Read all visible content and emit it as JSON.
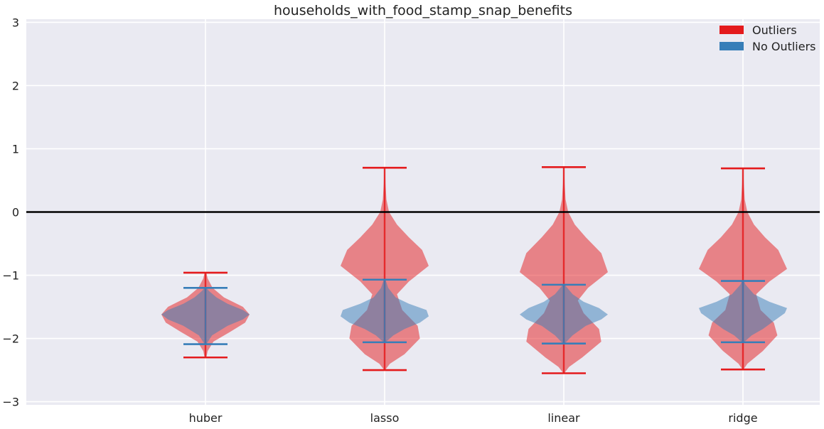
{
  "chart_data": {
    "type": "violin",
    "title": "households_with_food_stamp_snap_benefits",
    "xlabel": "",
    "ylabel": "",
    "categories": [
      "huber",
      "lasso",
      "linear",
      "ridge"
    ],
    "ylim": [
      -3.05,
      3.05
    ],
    "yticks": [
      -3,
      -2,
      -1,
      0,
      1,
      2,
      3
    ],
    "ytick_labels": [
      "−3",
      "−2",
      "−1",
      "0",
      "1",
      "2",
      "3"
    ],
    "reference_line_y": 0,
    "grid": true,
    "legend_position": "top-right",
    "series": [
      {
        "name": "Outliers",
        "color": "#e41a1c",
        "violins": [
          {
            "category": "huber",
            "min": -2.3,
            "max": -0.96,
            "profile": [
              [
                -2.3,
                0.02
              ],
              [
                -2.2,
                0.05
              ],
              [
                -2.05,
                0.18
              ],
              [
                -1.9,
                0.55
              ],
              [
                -1.75,
                0.9
              ],
              [
                -1.62,
                1.0
              ],
              [
                -1.5,
                0.85
              ],
              [
                -1.35,
                0.42
              ],
              [
                -1.2,
                0.16
              ],
              [
                -1.05,
                0.05
              ],
              [
                -0.96,
                0.02
              ]
            ]
          },
          {
            "category": "lasso",
            "min": -2.5,
            "max": 0.7,
            "profile": [
              [
                -2.5,
                0.01
              ],
              [
                -2.4,
                0.12
              ],
              [
                -2.25,
                0.45
              ],
              [
                -2.0,
                0.8
              ],
              [
                -1.8,
                0.75
              ],
              [
                -1.55,
                0.4
              ],
              [
                -1.3,
                0.28
              ],
              [
                -1.1,
                0.55
              ],
              [
                -0.85,
                1.0
              ],
              [
                -0.6,
                0.85
              ],
              [
                -0.4,
                0.55
              ],
              [
                -0.2,
                0.28
              ],
              [
                0.0,
                0.1
              ],
              [
                0.2,
                0.04
              ],
              [
                0.45,
                0.02
              ],
              [
                0.7,
                0.01
              ]
            ]
          },
          {
            "category": "linear",
            "min": -2.55,
            "max": 0.71,
            "profile": [
              [
                -2.55,
                0.01
              ],
              [
                -2.45,
                0.12
              ],
              [
                -2.3,
                0.42
              ],
              [
                -2.05,
                0.85
              ],
              [
                -1.85,
                0.8
              ],
              [
                -1.6,
                0.45
              ],
              [
                -1.4,
                0.32
              ],
              [
                -1.2,
                0.55
              ],
              [
                -0.95,
                1.0
              ],
              [
                -0.65,
                0.85
              ],
              [
                -0.4,
                0.5
              ],
              [
                -0.2,
                0.25
              ],
              [
                0.0,
                0.1
              ],
              [
                0.2,
                0.04
              ],
              [
                0.45,
                0.02
              ],
              [
                0.71,
                0.01
              ]
            ]
          },
          {
            "category": "ridge",
            "min": -2.49,
            "max": 0.69,
            "profile": [
              [
                -2.49,
                0.01
              ],
              [
                -2.4,
                0.1
              ],
              [
                -2.2,
                0.45
              ],
              [
                -1.95,
                0.78
              ],
              [
                -1.75,
                0.7
              ],
              [
                -1.55,
                0.4
              ],
              [
                -1.3,
                0.3
              ],
              [
                -1.1,
                0.6
              ],
              [
                -0.9,
                1.0
              ],
              [
                -0.6,
                0.8
              ],
              [
                -0.4,
                0.5
              ],
              [
                -0.2,
                0.25
              ],
              [
                0.0,
                0.1
              ],
              [
                0.2,
                0.04
              ],
              [
                0.45,
                0.02
              ],
              [
                0.69,
                0.01
              ]
            ]
          }
        ]
      },
      {
        "name": "No Outliers",
        "color": "#377eb8",
        "violins": [
          {
            "category": "huber",
            "min": -2.09,
            "max": -1.2,
            "profile": [
              [
                -2.09,
                0.02
              ],
              [
                -1.95,
                0.15
              ],
              [
                -1.8,
                0.5
              ],
              [
                -1.7,
                0.85
              ],
              [
                -1.62,
                1.0
              ],
              [
                -1.55,
                0.85
              ],
              [
                -1.45,
                0.5
              ],
              [
                -1.35,
                0.25
              ],
              [
                -1.25,
                0.08
              ],
              [
                -1.2,
                0.02
              ]
            ]
          },
          {
            "category": "lasso",
            "min": -2.06,
            "max": -1.07,
            "profile": [
              [
                -2.06,
                0.02
              ],
              [
                -1.95,
                0.2
              ],
              [
                -1.85,
                0.45
              ],
              [
                -1.75,
                0.8
              ],
              [
                -1.65,
                1.0
              ],
              [
                -1.55,
                0.95
              ],
              [
                -1.45,
                0.55
              ],
              [
                -1.35,
                0.25
              ],
              [
                -1.2,
                0.08
              ],
              [
                -1.07,
                0.02
              ]
            ]
          },
          {
            "category": "linear",
            "min": -2.08,
            "max": -1.15,
            "profile": [
              [
                -2.08,
                0.02
              ],
              [
                -1.95,
                0.2
              ],
              [
                -1.8,
                0.5
              ],
              [
                -1.7,
                0.85
              ],
              [
                -1.62,
                1.0
              ],
              [
                -1.52,
                0.8
              ],
              [
                -1.42,
                0.45
              ],
              [
                -1.3,
                0.2
              ],
              [
                -1.15,
                0.02
              ]
            ]
          },
          {
            "category": "ridge",
            "min": -2.06,
            "max": -1.09,
            "profile": [
              [
                -2.06,
                0.02
              ],
              [
                -1.95,
                0.2
              ],
              [
                -1.85,
                0.45
              ],
              [
                -1.7,
                0.75
              ],
              [
                -1.6,
                0.95
              ],
              [
                -1.52,
                1.0
              ],
              [
                -1.42,
                0.6
              ],
              [
                -1.3,
                0.25
              ],
              [
                -1.15,
                0.06
              ],
              [
                -1.09,
                0.02
              ]
            ]
          }
        ]
      }
    ]
  }
}
